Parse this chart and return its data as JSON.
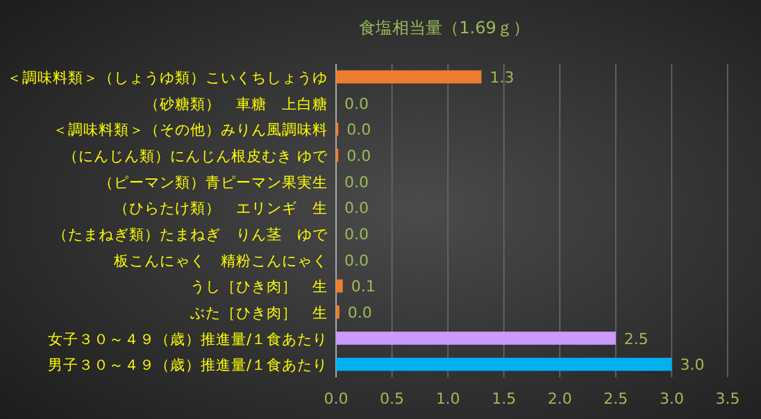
{
  "chart_data": {
    "type": "bar",
    "orientation": "horizontal",
    "title": "食塩相当量（1.69ｇ）",
    "categories": [
      "＜調味料類＞（しょうゆ類）こいくちしょうゆ",
      "（砂糖類）　車糖　上白糖",
      "＜調味料類＞（その他）みりん風調味料",
      "（にんじん類）にんじん根皮むき ゆで",
      "（ピーマン類）青ピーマン果実生",
      "（ひらたけ類）　エリンギ　生",
      "（たまねぎ類）たまねぎ　りん茎　ゆで",
      "板こんにゃく　精粉こんにゃく",
      "うし［ひき肉］　生",
      "ぶた［ひき肉］　生",
      "女子３０～４９（歳）推進量/１食あたり",
      "男子３０～４９（歳）推進量/１食あたり"
    ],
    "values": [
      1.3,
      0,
      0.02,
      0.02,
      0,
      0,
      0,
      0,
      0.06,
      0.03,
      2.5,
      3.0
    ],
    "value_labels": [
      "1.3",
      "0.0",
      "0.0",
      "0.0",
      "0.0",
      "0.0",
      "0.0",
      "0.0",
      "0.1",
      "0.0",
      "2.5",
      "3.0"
    ],
    "colors": [
      "#ed7d31",
      "#ed7d31",
      "#ed7d31",
      "#ed7d31",
      "#ed7d31",
      "#ed7d31",
      "#ed7d31",
      "#ed7d31",
      "#ed7d31",
      "#ed7d31",
      "#cc99ff",
      "#00b0f0"
    ],
    "xlim": [
      0,
      3.5
    ],
    "xticks": [
      {
        "value": 0,
        "label": "0.0"
      },
      {
        "value": 0.5,
        "label": "0.5"
      },
      {
        "value": 1,
        "label": "1.0"
      },
      {
        "value": 1.5,
        "label": "1.5"
      },
      {
        "value": 2,
        "label": "2.0"
      },
      {
        "value": 2.5,
        "label": "2.5"
      },
      {
        "value": 3,
        "label": "3.0"
      },
      {
        "value": 3.5,
        "label": "3.5"
      }
    ],
    "grid": "x"
  }
}
